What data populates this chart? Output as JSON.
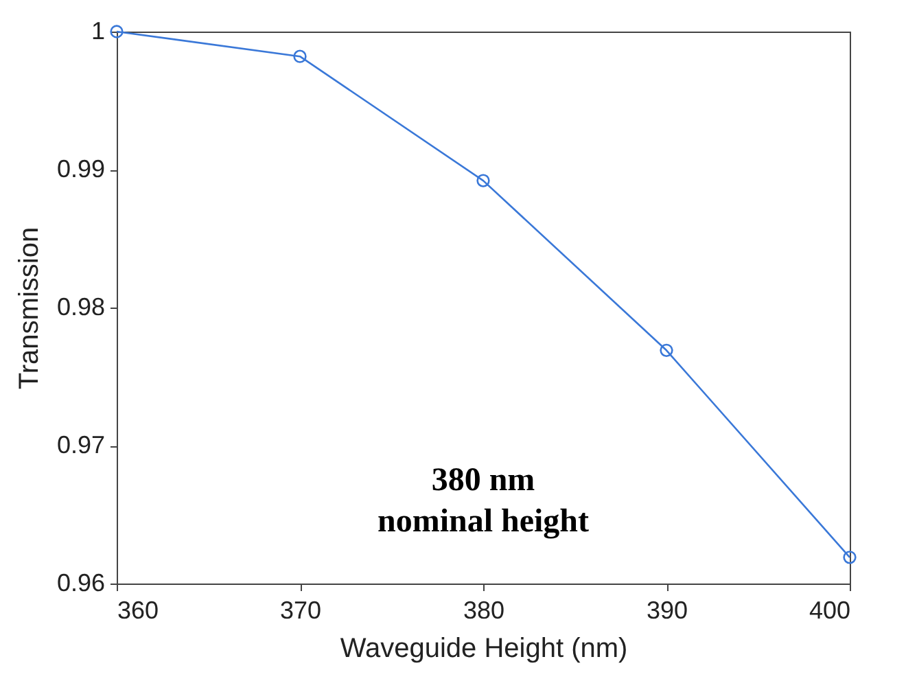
{
  "chart_data": {
    "type": "line",
    "xlabel": "Waveguide Height (nm)",
    "ylabel": "Transmission",
    "x": [
      360,
      370,
      380,
      390,
      400
    ],
    "series": [
      {
        "color": "#3a78d8",
        "values": [
          1.0,
          0.9982,
          0.9892,
          0.9769,
          0.9619
        ]
      }
    ],
    "xlim": [
      360,
      400
    ],
    "xticks": [
      360,
      370,
      380,
      390,
      400
    ],
    "ylim": [
      0.96,
      1
    ],
    "yticks": [
      0.96,
      0.97,
      0.98,
      0.99,
      1
    ],
    "marker": "circle",
    "line_style": "solid",
    "grid": false,
    "annotations": [
      "380 nm\nnominal height"
    ]
  }
}
